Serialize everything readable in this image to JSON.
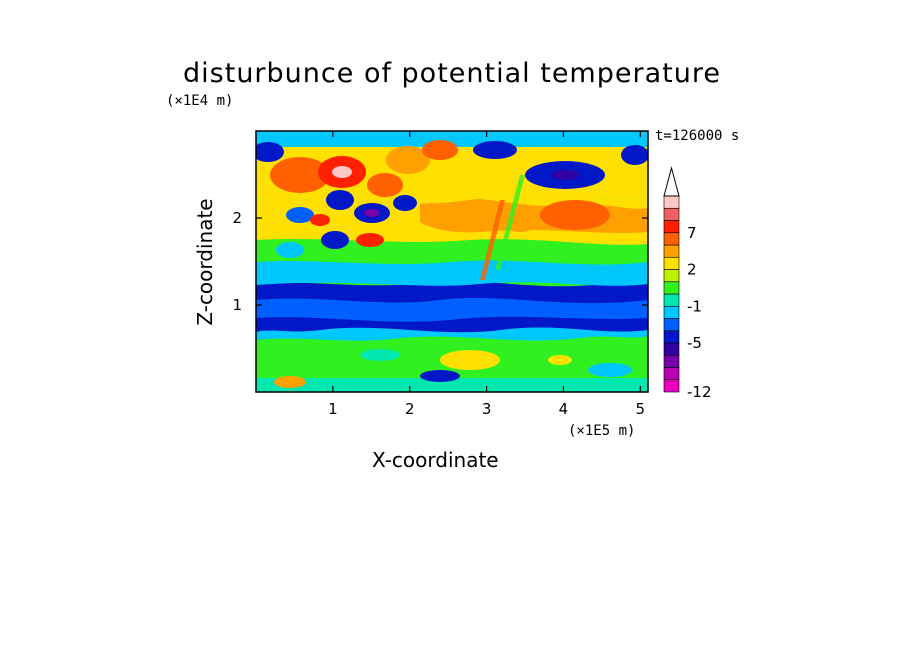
{
  "chart_data": {
    "type": "heatmap",
    "title": "disturbunce of potential temperature",
    "xlabel": "X-coordinate",
    "ylabel": "Z-coordinate",
    "x_unit": "(×1E5 m)",
    "y_unit": "(×1E4 m)",
    "annotation": "t=126000 s",
    "xlim": [
      0,
      5.1
    ],
    "ylim": [
      0,
      3.0
    ],
    "x_ticks": [
      "1",
      "2",
      "3",
      "4",
      "5"
    ],
    "y_ticks": [
      "1",
      "2"
    ],
    "colorbar": {
      "levels": [
        -12,
        -11,
        -9,
        -7,
        -5,
        -4,
        -3,
        -1,
        0,
        1,
        2,
        3,
        5,
        7,
        9,
        11
      ],
      "labels": [
        "-12",
        "-5",
        "-1",
        "2",
        "7"
      ],
      "colors": [
        "#e800c0",
        "#b800b0",
        "#7800a8",
        "#3000a0",
        "#0018c8",
        "#0060ff",
        "#00c8ff",
        "#00e8b0",
        "#30f020",
        "#c0f000",
        "#ffe000",
        "#ffa000",
        "#ff6000",
        "#ff2000",
        "#f06060",
        "#ffc8c8"
      ],
      "extend": "max"
    },
    "bands": [
      {
        "z": [
          0.0,
          0.15
        ],
        "level": "cyan"
      },
      {
        "z": [
          0.15,
          0.55
        ],
        "level": "green"
      },
      {
        "z": [
          0.55,
          0.8
        ],
        "level": "cyan"
      },
      {
        "z": [
          0.8,
          1.3
        ],
        "level": "blue"
      },
      {
        "z": [
          1.3,
          1.5
        ],
        "level": "cyan"
      },
      {
        "z": [
          1.5,
          1.7
        ],
        "level": "green"
      },
      {
        "z": [
          1.7,
          2.2
        ],
        "level": "yellow-orange"
      },
      {
        "z": [
          2.2,
          2.9
        ],
        "level": "mixed orange/blue"
      },
      {
        "z": [
          2.9,
          3.0
        ],
        "level": "blue"
      }
    ]
  }
}
